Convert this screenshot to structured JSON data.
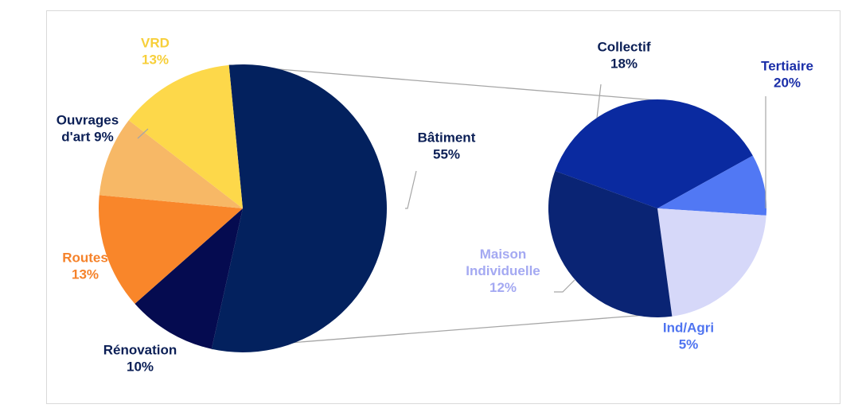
{
  "chart_data": {
    "type": "pie",
    "subtype": "pie-of-pie",
    "main_pie": {
      "slices": [
        {
          "label_lines": [
            "Bâtiment",
            "55%"
          ],
          "value": 55,
          "color": "#03215e",
          "label_color": "#0b1f56"
        },
        {
          "label_lines": [
            "Rénovation",
            "10%"
          ],
          "value": 10,
          "color": "#050b50",
          "label_color": "#0b1f56"
        },
        {
          "label_lines": [
            "Routes",
            "13%"
          ],
          "value": 13,
          "color": "#f9862a",
          "label_color": "#f5822a"
        },
        {
          "label_lines": [
            "Ouvrages",
            "d'art 9%"
          ],
          "value": 9,
          "color": "#f7b866",
          "label_color": "#0b1f56"
        },
        {
          "label_lines": [
            "VRD",
            "13%"
          ],
          "value": 13,
          "color": "#fdd84a",
          "label_color": "#f7cf3a"
        }
      ]
    },
    "secondary_pie": {
      "breakdown_of": "Bâtiment",
      "slices": [
        {
          "label_lines": [
            "Tertiaire",
            "20%"
          ],
          "value": 20,
          "color": "#0a2aa0",
          "label_color": "#1a2ea8"
        },
        {
          "label_lines": [
            "Ind/Agri",
            "5%"
          ],
          "value": 5,
          "color": "#5178f4",
          "label_color": "#4f74f0"
        },
        {
          "label_lines": [
            "Maison",
            "Individuelle",
            "12%"
          ],
          "value": 12,
          "color": "#d6d8f9",
          "label_color": "#a4a9f2"
        },
        {
          "label_lines": [
            "Collectif",
            "18%"
          ],
          "value": 18,
          "color": "#0a2474",
          "label_color": "#0b1f56"
        }
      ]
    },
    "legend": "none",
    "grid": false
  }
}
